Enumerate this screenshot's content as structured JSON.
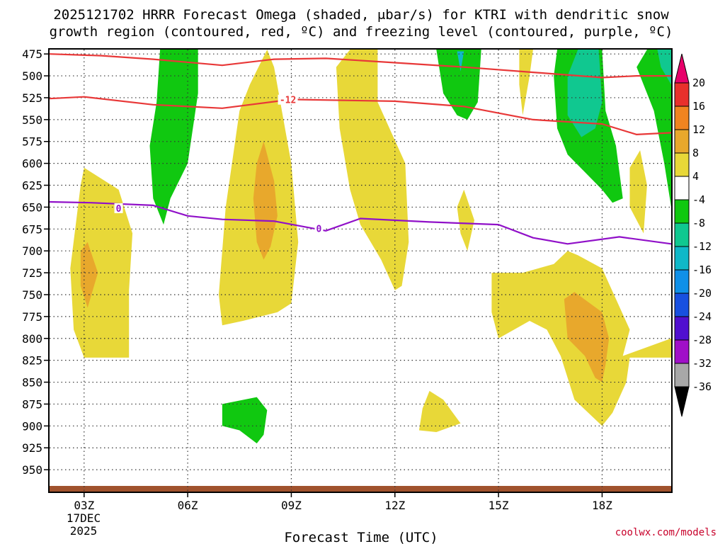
{
  "chart_data": {
    "type": "time-height contour",
    "title_line1": "2025121702 HRRR Forecast Omega (shaded, μbar/s) for KTRI with dendritic snow",
    "title_line2": "growth region (contoured, red, ºC) and freezing level (contoured, purple, ºC)",
    "xlabel": "Forecast Time (UTC)",
    "x_ticks": [
      "03Z",
      "06Z",
      "09Z",
      "12Z",
      "15Z",
      "18Z"
    ],
    "x_tick_hours": [
      3,
      6,
      9,
      12,
      15,
      18
    ],
    "x_range_hours": [
      2,
      20
    ],
    "date_label": [
      "17DEC",
      "2025"
    ],
    "y_ticks": [
      475,
      500,
      525,
      550,
      575,
      600,
      625,
      650,
      675,
      700,
      725,
      750,
      775,
      800,
      825,
      850,
      875,
      900,
      925,
      950
    ],
    "y_range_hpa": [
      470,
      975
    ],
    "colorbar_ticks": [
      "20",
      "16",
      "12",
      "8",
      "4",
      "-4",
      "-8",
      "-12",
      "-16",
      "-20",
      "-24",
      "-28",
      "-32",
      "-36"
    ],
    "colorbar_colors": [
      "#e8006a",
      "#e8302c",
      "#f08420",
      "#e8a82c",
      "#e8d838",
      "#ffffff",
      "#10c810",
      "#10c890",
      "#10b8c8",
      "#1090e8",
      "#1850e0",
      "#5010d0",
      "#a010c8",
      "#a8a8a8",
      "#000000"
    ],
    "shading_colors": {
      "omega_4_8": "#e8d838",
      "omega_8_12": "#e8a82c",
      "omega_-4_-8": "#10c810",
      "omega_-8_-12": "#10c890",
      "omega_-12_-16": "#10b8c8",
      "terrain": "#a0522d"
    },
    "contours": [
      {
        "name": "upper dendritic bound",
        "label": "",
        "color": "#e83838",
        "points": [
          [
            2,
            475
          ],
          [
            3.5,
            477
          ],
          [
            5,
            481
          ],
          [
            7,
            488
          ],
          [
            8.5,
            481
          ],
          [
            10,
            480
          ],
          [
            12,
            485
          ],
          [
            14,
            490
          ],
          [
            16,
            496
          ],
          [
            18,
            502
          ],
          [
            19,
            500
          ],
          [
            20,
            500
          ]
        ]
      },
      {
        "name": "-12 C line",
        "label": "-12",
        "label_at": [
          8.9,
          528
        ],
        "color": "#e83838",
        "points": [
          [
            2,
            526
          ],
          [
            3,
            524
          ],
          [
            5,
            533
          ],
          [
            7,
            537
          ],
          [
            9,
            527
          ],
          [
            12,
            529
          ],
          [
            14,
            535
          ],
          [
            16,
            550
          ],
          [
            18,
            555
          ],
          [
            19,
            567
          ],
          [
            20,
            565
          ]
        ]
      },
      {
        "name": "freezing level",
        "label": "0",
        "label_at": [
          4,
          652
        ],
        "label2": "0",
        "label2_at": [
          9.8,
          675
        ],
        "color": "#9010c8",
        "points": [
          [
            2,
            644
          ],
          [
            3.2,
            645
          ],
          [
            5,
            648
          ],
          [
            6,
            660
          ],
          [
            7,
            664
          ],
          [
            8.5,
            666
          ],
          [
            10,
            677
          ],
          [
            11,
            663
          ],
          [
            13,
            667
          ],
          [
            15,
            670
          ],
          [
            16,
            685
          ],
          [
            17,
            692
          ],
          [
            18.5,
            684
          ],
          [
            20,
            692
          ]
        ]
      }
    ],
    "regions": [
      {
        "band": "omega_-4_-8",
        "points": [
          [
            5.2,
            470
          ],
          [
            6.3,
            470
          ],
          [
            6.3,
            520
          ],
          [
            6,
            600
          ],
          [
            5.5,
            640
          ],
          [
            5.3,
            670
          ],
          [
            5,
            640
          ],
          [
            4.9,
            580
          ],
          [
            5.1,
            530
          ],
          [
            5.2,
            470
          ]
        ]
      },
      {
        "band": "omega_-4_-8",
        "points": [
          [
            13.2,
            470
          ],
          [
            14.5,
            470
          ],
          [
            14.4,
            530
          ],
          [
            14.1,
            550
          ],
          [
            13.8,
            545
          ],
          [
            13.4,
            520
          ],
          [
            13.2,
            470
          ]
        ]
      },
      {
        "name": "omega_-4_-8",
        "band": "omega_-4_-8",
        "points": [
          [
            16.7,
            470
          ],
          [
            18,
            470
          ],
          [
            18.1,
            540
          ],
          [
            18.4,
            580
          ],
          [
            18.6,
            640
          ],
          [
            18.3,
            645
          ],
          [
            18,
            630
          ],
          [
            17.5,
            610
          ],
          [
            17,
            590
          ],
          [
            16.7,
            560
          ],
          [
            16.6,
            500
          ],
          [
            16.7,
            470
          ]
        ]
      },
      {
        "band": "omega_-4_-8",
        "points": [
          [
            19,
            490
          ],
          [
            19.3,
            470
          ],
          [
            20,
            470
          ],
          [
            20,
            560
          ],
          [
            20,
            650
          ],
          [
            19.8,
            600
          ],
          [
            19.5,
            540
          ],
          [
            19,
            490
          ]
        ]
      },
      {
        "band": "omega_-8_-12",
        "points": [
          [
            17.3,
            470
          ],
          [
            17.9,
            470
          ],
          [
            18,
            530
          ],
          [
            17.8,
            560
          ],
          [
            17.4,
            570
          ],
          [
            17,
            545
          ],
          [
            17,
            500
          ],
          [
            17.3,
            470
          ]
        ]
      },
      {
        "band": "omega_-8_-12",
        "points": [
          [
            19.6,
            470
          ],
          [
            20,
            470
          ],
          [
            20,
            510
          ],
          [
            19.7,
            490
          ],
          [
            19.6,
            470
          ]
        ]
      },
      {
        "band": "omega_-12_-16",
        "points": [
          [
            13.8,
            472
          ],
          [
            14.0,
            472
          ],
          [
            13.9,
            495
          ],
          [
            13.8,
            472
          ]
        ]
      },
      {
        "band": "omega_-4_-8",
        "points": [
          [
            7,
            875
          ],
          [
            8,
            867
          ],
          [
            8.3,
            882
          ],
          [
            8.2,
            910
          ],
          [
            8,
            920
          ],
          [
            7.5,
            905
          ],
          [
            7,
            900
          ],
          [
            7,
            875
          ]
        ]
      },
      {
        "band": "omega_4_8",
        "points": [
          [
            2.9,
            625
          ],
          [
            3,
            605
          ],
          [
            4,
            630
          ],
          [
            4.4,
            680
          ],
          [
            4.3,
            745
          ],
          [
            4.3,
            810
          ],
          [
            4.3,
            822
          ],
          [
            3,
            822
          ],
          [
            2.7,
            790
          ],
          [
            2.6,
            720
          ],
          [
            2.9,
            625
          ]
        ]
      },
      {
        "band": "omega_4_8",
        "points": [
          [
            7.8,
            510
          ],
          [
            8.3,
            470
          ],
          [
            8.5,
            490
          ],
          [
            9,
            600
          ],
          [
            9.2,
            690
          ],
          [
            9.0,
            760
          ],
          [
            8.6,
            770
          ],
          [
            7.6,
            780
          ],
          [
            7.0,
            785
          ],
          [
            6.9,
            750
          ],
          [
            7.1,
            650
          ],
          [
            7.5,
            540
          ],
          [
            7.8,
            510
          ]
        ]
      },
      {
        "band": "omega_4_8",
        "points": [
          [
            10.7,
            470
          ],
          [
            11.5,
            470
          ],
          [
            11.5,
            530
          ],
          [
            12.3,
            600
          ],
          [
            12.4,
            690
          ],
          [
            12.2,
            740
          ],
          [
            12,
            745
          ],
          [
            11.6,
            710
          ],
          [
            11.3,
            690
          ],
          [
            11,
            670
          ],
          [
            10.7,
            630
          ],
          [
            10.4,
            560
          ],
          [
            10.3,
            490
          ],
          [
            10.7,
            470
          ]
        ]
      },
      {
        "band": "omega_4_8",
        "points": [
          [
            15.6,
            470
          ],
          [
            16.0,
            470
          ],
          [
            15.9,
            500
          ],
          [
            15.7,
            545
          ],
          [
            15.6,
            510
          ],
          [
            15.6,
            470
          ]
        ]
      },
      {
        "band": "omega_4_8",
        "points": [
          [
            13.8,
            650
          ],
          [
            14.0,
            630
          ],
          [
            14.3,
            665
          ],
          [
            14.1,
            700
          ],
          [
            13.9,
            680
          ],
          [
            13.8,
            650
          ]
        ]
      },
      {
        "band": "omega_4_8",
        "points": [
          [
            18.8,
            605
          ],
          [
            19.1,
            585
          ],
          [
            19.3,
            625
          ],
          [
            19.2,
            680
          ],
          [
            18.8,
            650
          ],
          [
            18.8,
            605
          ]
        ]
      },
      {
        "band": "omega_4_8",
        "points": [
          [
            14.8,
            725
          ],
          [
            15.7,
            725
          ],
          [
            16.6,
            715
          ],
          [
            17,
            700
          ],
          [
            17.3,
            705
          ],
          [
            18,
            720
          ],
          [
            18.8,
            790
          ],
          [
            18.6,
            820
          ],
          [
            20,
            800
          ],
          [
            20,
            822
          ],
          [
            18.8,
            822
          ],
          [
            18.7,
            850
          ],
          [
            18.3,
            885
          ],
          [
            18,
            900
          ],
          [
            17.2,
            870
          ],
          [
            17,
            845
          ],
          [
            16.8,
            820
          ],
          [
            16.4,
            790
          ],
          [
            15.9,
            780
          ],
          [
            15,
            800
          ],
          [
            14.8,
            770
          ],
          [
            14.8,
            725
          ]
        ]
      },
      {
        "band": "omega_4_8",
        "points": [
          [
            12.8,
            880
          ],
          [
            13,
            860
          ],
          [
            13.4,
            870
          ],
          [
            13.9,
            897
          ],
          [
            13.2,
            907
          ],
          [
            12.7,
            905
          ],
          [
            12.8,
            880
          ]
        ]
      },
      {
        "band": "omega_8_12",
        "points": [
          [
            2.9,
            700
          ],
          [
            3.1,
            690
          ],
          [
            3.4,
            725
          ],
          [
            3.1,
            765
          ],
          [
            2.9,
            740
          ],
          [
            2.9,
            700
          ]
        ]
      },
      {
        "band": "omega_8_12",
        "points": [
          [
            8.0,
            600
          ],
          [
            8.2,
            575
          ],
          [
            8.5,
            620
          ],
          [
            8.6,
            660
          ],
          [
            8.4,
            695
          ],
          [
            8.2,
            710
          ],
          [
            8.0,
            690
          ],
          [
            7.9,
            640
          ],
          [
            8.0,
            600
          ]
        ]
      },
      {
        "band": "omega_8_12",
        "points": [
          [
            16.9,
            755
          ],
          [
            17.2,
            747
          ],
          [
            18,
            770
          ],
          [
            18.2,
            800
          ],
          [
            18.1,
            830
          ],
          [
            18,
            850
          ],
          [
            17.8,
            845
          ],
          [
            17.5,
            820
          ],
          [
            17,
            800
          ],
          [
            16.9,
            755
          ]
        ]
      }
    ]
  },
  "credit": "coolwx.com/models"
}
